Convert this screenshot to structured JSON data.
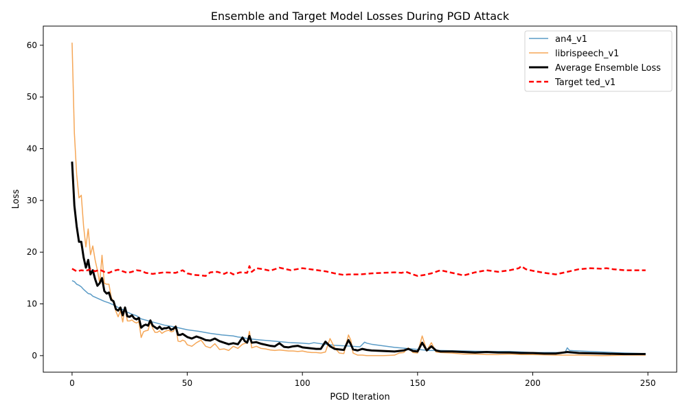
{
  "chart_data": {
    "type": "line",
    "title": "Ensemble and Target Model Losses During PGD Attack",
    "xlabel": "PGD Iteration",
    "ylabel": "Loss",
    "xlim": [
      -12.5,
      262.5
    ],
    "ylim": [
      -3.2,
      63.7
    ],
    "xticks": [
      0,
      50,
      100,
      150,
      200,
      250
    ],
    "yticks": [
      0,
      10,
      20,
      30,
      40,
      50,
      60
    ],
    "grid": false,
    "legend_position": "top-right",
    "series": [
      {
        "name": "an4_v1",
        "color": "#5a9bc6",
        "style": "solid",
        "width": 1.5,
        "x": [
          0,
          1,
          2,
          3,
          4,
          5,
          6,
          7,
          8,
          9,
          10,
          12,
          14,
          16,
          18,
          20,
          22,
          24,
          26,
          28,
          30,
          35,
          40,
          45,
          50,
          55,
          60,
          65,
          70,
          72,
          74,
          76,
          78,
          80,
          85,
          90,
          95,
          100,
          103,
          105,
          108,
          110,
          112,
          114,
          118,
          122,
          125,
          127,
          128,
          130,
          135,
          140,
          145,
          150,
          155,
          160,
          170,
          180,
          190,
          200,
          210,
          214,
          215,
          216,
          220,
          225,
          230,
          240,
          249
        ],
        "y": [
          14.5,
          14.3,
          13.8,
          13.6,
          13.3,
          12.8,
          12.4,
          12.0,
          11.9,
          11.5,
          11.3,
          10.9,
          10.5,
          10.2,
          9.8,
          9.3,
          8.9,
          8.4,
          8.0,
          7.7,
          7.1,
          6.5,
          5.9,
          5.5,
          5.0,
          4.7,
          4.3,
          4.0,
          3.8,
          3.6,
          3.5,
          3.3,
          3.2,
          3.1,
          2.9,
          2.7,
          2.5,
          2.4,
          2.3,
          2.5,
          2.3,
          2.2,
          2.1,
          2.0,
          1.9,
          1.8,
          1.7,
          2.6,
          2.4,
          2.2,
          1.9,
          1.6,
          1.4,
          1.2,
          1.0,
          1.0,
          0.9,
          0.8,
          0.8,
          0.6,
          0.6,
          0.6,
          1.5,
          1.0,
          0.9,
          0.8,
          0.7,
          0.5,
          0.4
        ]
      },
      {
        "name": "librispeech_v1",
        "color": "#f5a656",
        "style": "solid",
        "width": 1.5,
        "x": [
          0,
          1,
          2,
          3,
          4,
          5,
          6,
          7,
          8,
          9,
          10,
          11,
          12,
          13,
          14,
          15,
          16,
          17,
          18,
          19,
          20,
          21,
          22,
          23,
          24,
          25,
          26,
          27,
          28,
          29,
          30,
          31,
          32,
          33,
          34,
          35,
          36,
          37,
          38,
          39,
          40,
          41,
          42,
          43,
          44,
          45,
          46,
          47,
          48,
          49,
          50,
          52,
          54,
          56,
          58,
          60,
          62,
          64,
          66,
          68,
          70,
          72,
          74,
          76,
          77,
          78,
          80,
          82,
          84,
          86,
          88,
          90,
          92,
          94,
          96,
          98,
          100,
          102,
          104,
          106,
          108,
          110,
          112,
          114,
          116,
          118,
          120,
          121,
          122,
          124,
          126,
          128,
          130,
          135,
          140,
          142,
          144,
          146,
          148,
          150,
          152,
          154,
          156,
          158,
          160,
          165,
          170,
          175,
          180,
          185,
          190,
          195,
          200,
          210,
          215,
          220,
          230,
          240,
          249
        ],
        "y": [
          60.5,
          43.0,
          35.0,
          30.5,
          31.0,
          25.0,
          21.0,
          24.5,
          19.5,
          21.2,
          18.5,
          16.5,
          14.0,
          19.4,
          14.0,
          13.8,
          13.8,
          11.3,
          10.3,
          8.6,
          7.5,
          8.7,
          6.5,
          9.4,
          6.7,
          6.7,
          6.9,
          6.5,
          6.3,
          6.6,
          3.5,
          4.6,
          4.8,
          4.9,
          6.5,
          5.3,
          4.5,
          4.5,
          4.8,
          4.3,
          4.6,
          4.8,
          4.9,
          4.6,
          4.7,
          5.8,
          2.8,
          2.7,
          3.0,
          2.8,
          2.1,
          1.8,
          2.5,
          3.0,
          1.8,
          1.5,
          2.3,
          1.2,
          1.3,
          1.0,
          1.8,
          1.4,
          2.2,
          2.5,
          4.7,
          1.5,
          1.8,
          1.4,
          1.3,
          1.1,
          1.0,
          1.1,
          1.0,
          0.9,
          0.9,
          0.8,
          0.9,
          0.7,
          0.6,
          0.6,
          0.5,
          0.7,
          3.3,
          1.5,
          0.5,
          0.4,
          4.0,
          3.0,
          0.5,
          0.1,
          0.1,
          0.0,
          0.0,
          0.0,
          0.1,
          0.5,
          0.6,
          1.5,
          0.6,
          0.5,
          3.8,
          1.0,
          2.5,
          0.7,
          0.6,
          0.5,
          0.3,
          0.3,
          0.2,
          0.2,
          0.3,
          0.2,
          0.2,
          0.1,
          0.1,
          0.1,
          0.0,
          0.1,
          0.1
        ]
      },
      {
        "name": "Average Ensemble Loss",
        "color": "#000000",
        "style": "solid",
        "width": 3,
        "x": [
          0,
          1,
          2,
          3,
          4,
          5,
          6,
          7,
          8,
          9,
          10,
          11,
          12,
          13,
          14,
          15,
          16,
          17,
          18,
          19,
          20,
          21,
          22,
          23,
          24,
          25,
          26,
          27,
          28,
          29,
          30,
          31,
          32,
          33,
          34,
          35,
          36,
          37,
          38,
          39,
          40,
          41,
          42,
          43,
          44,
          45,
          46,
          47,
          48,
          49,
          50,
          52,
          54,
          56,
          58,
          60,
          62,
          64,
          66,
          68,
          70,
          72,
          74,
          75,
          76,
          77,
          78,
          80,
          82,
          84,
          86,
          88,
          90,
          92,
          94,
          96,
          98,
          100,
          102,
          104,
          106,
          108,
          110,
          112,
          114,
          116,
          118,
          120,
          121,
          122,
          124,
          126,
          128,
          130,
          135,
          140,
          142,
          144,
          146,
          148,
          150,
          152,
          154,
          156,
          158,
          160,
          165,
          170,
          175,
          180,
          185,
          190,
          195,
          200,
          205,
          210,
          215,
          220,
          230,
          240,
          249
        ],
        "y": [
          37.5,
          29.0,
          25.0,
          22.0,
          22.0,
          19.0,
          17.0,
          18.5,
          15.7,
          16.5,
          14.8,
          13.5,
          14.0,
          15.0,
          12.5,
          12.0,
          12.2,
          10.8,
          10.5,
          9.0,
          8.7,
          9.3,
          7.8,
          9.3,
          7.6,
          7.5,
          7.8,
          7.2,
          7.0,
          7.3,
          5.4,
          5.8,
          6.0,
          5.8,
          6.8,
          5.8,
          5.5,
          5.2,
          5.6,
          5.1,
          5.3,
          5.3,
          5.5,
          5.0,
          5.2,
          5.6,
          4.0,
          4.0,
          4.2,
          3.9,
          3.6,
          3.3,
          3.7,
          3.4,
          3.0,
          2.9,
          3.3,
          2.8,
          2.5,
          2.2,
          2.4,
          2.2,
          3.5,
          2.8,
          2.5,
          3.8,
          2.5,
          2.6,
          2.3,
          2.1,
          1.9,
          1.8,
          2.4,
          1.7,
          1.6,
          1.8,
          1.9,
          1.6,
          1.5,
          1.4,
          1.3,
          1.3,
          2.7,
          1.8,
          1.3,
          1.2,
          1.1,
          3.0,
          2.2,
          1.2,
          1.0,
          1.3,
          1.1,
          1.0,
          0.9,
          0.8,
          0.9,
          1.0,
          1.3,
          0.9,
          0.8,
          2.5,
          1.0,
          1.8,
          1.0,
          0.8,
          0.8,
          0.7,
          0.6,
          0.7,
          0.6,
          0.6,
          0.5,
          0.5,
          0.4,
          0.4,
          0.7,
          0.5,
          0.4,
          0.3,
          0.3
        ]
      },
      {
        "name": "Target ted_v1",
        "color": "#ff0000",
        "style": "dashed",
        "width": 2.5,
        "x": [
          0,
          2,
          4,
          6,
          8,
          10,
          12,
          14,
          16,
          18,
          20,
          22,
          24,
          26,
          28,
          30,
          32,
          35,
          40,
          45,
          48,
          50,
          53,
          56,
          58,
          60,
          63,
          66,
          68,
          70,
          73,
          76,
          77,
          78,
          80,
          83,
          86,
          90,
          95,
          100,
          105,
          110,
          115,
          118,
          120,
          125,
          130,
          135,
          140,
          143,
          145,
          148,
          150,
          153,
          156,
          160,
          165,
          170,
          175,
          180,
          185,
          190,
          194,
          195,
          197,
          200,
          205,
          210,
          215,
          220,
          225,
          230,
          232,
          235,
          240,
          249
        ],
        "y": [
          16.8,
          16.3,
          16.5,
          16.4,
          16.7,
          16.3,
          16.6,
          16.2,
          16.0,
          16.4,
          16.6,
          16.3,
          16.0,
          16.2,
          16.5,
          16.4,
          16.0,
          15.8,
          16.1,
          16.0,
          16.5,
          15.9,
          15.6,
          15.5,
          15.4,
          16.1,
          16.2,
          15.8,
          16.2,
          15.7,
          16.1,
          16.0,
          17.3,
          16.2,
          16.9,
          16.7,
          16.4,
          17.0,
          16.5,
          16.9,
          16.6,
          16.3,
          15.8,
          15.6,
          15.7,
          15.7,
          15.9,
          16.0,
          16.1,
          16.0,
          16.2,
          15.7,
          15.4,
          15.6,
          15.9,
          16.5,
          16.0,
          15.5,
          16.1,
          16.5,
          16.2,
          16.5,
          16.9,
          17.3,
          16.7,
          16.4,
          16.0,
          15.7,
          16.2,
          16.7,
          16.9,
          16.8,
          16.9,
          16.7,
          16.5,
          16.5
        ]
      }
    ]
  }
}
